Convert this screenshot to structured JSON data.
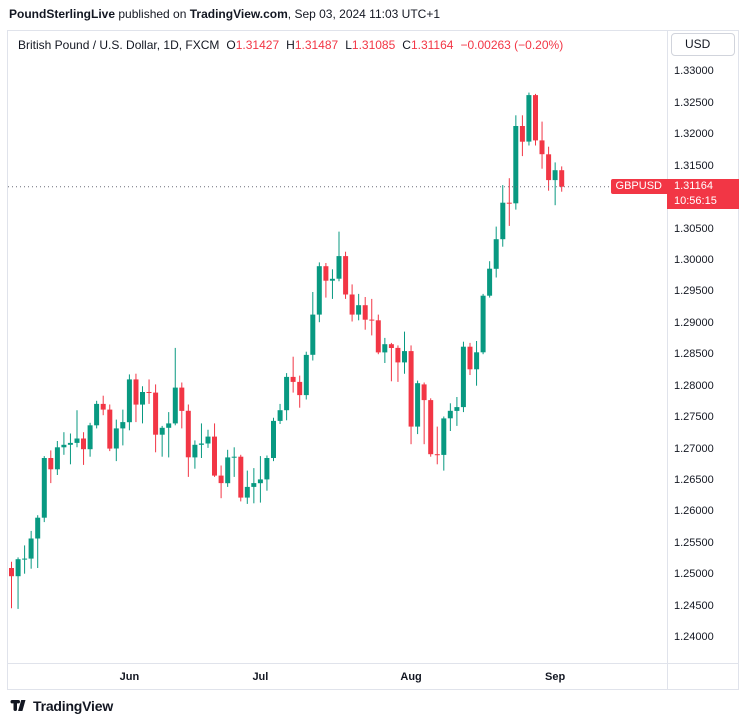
{
  "attribution": {
    "parts": [
      {
        "text": "PoundSterlingLive",
        "bold": true
      },
      {
        "text": " published on ",
        "bold": false
      },
      {
        "text": "TradingView.com",
        "bold": true
      },
      {
        "text": ", Sep 03, 2024 11:03 UTC+1",
        "bold": false
      }
    ]
  },
  "legend": {
    "symbol_title": "British Pound / U.S. Dollar, 1D, FXCM",
    "ohlc": {
      "o_label": "O",
      "o": "1.31427",
      "h_label": "H",
      "h": "1.31487",
      "l_label": "L",
      "l": "1.31085",
      "c_label": "C",
      "c": "1.31164",
      "change": "−0.00263 (−0.20%)"
    }
  },
  "price_axis": {
    "currency_button": "USD",
    "labels": [
      "1.33000",
      "1.32500",
      "1.32000",
      "1.31500",
      "1.31000",
      "1.30500",
      "1.30000",
      "1.29500",
      "1.29000",
      "1.28500",
      "1.28000",
      "1.27500",
      "1.27000",
      "1.26500",
      "1.26000",
      "1.25500",
      "1.25000",
      "1.24500",
      "1.24000"
    ],
    "price_tag": {
      "symbol": "GBPUSD",
      "price": "1.31164",
      "countdown": "10:56:15"
    }
  },
  "time_axis": {
    "labels": [
      {
        "text": "Jun",
        "candle_index": 18
      },
      {
        "text": "Jul",
        "candle_index": 38
      },
      {
        "text": "Aug",
        "candle_index": 61
      },
      {
        "text": "Sep",
        "candle_index": 83
      }
    ]
  },
  "footer": {
    "brand": "TradingView"
  },
  "colors": {
    "up": "#089981",
    "down": "#F23645",
    "price_line": "#6a6d78",
    "tag_bg": "#F23645",
    "text": "#131722",
    "border": "#e0e3eb"
  },
  "chart_data": {
    "type": "candlestick",
    "title": "British Pound / U.S. Dollar, 1D, FXCM",
    "symbol": "GBPUSD",
    "interval": "1D",
    "exchange": "FXCM",
    "last": {
      "open": 1.31427,
      "high": 1.31487,
      "low": 1.31085,
      "close": 1.31164,
      "change": -0.00263,
      "change_pct": -0.2
    },
    "ylim": [
      1.2359,
      1.3364
    ],
    "price_line": 1.31164,
    "x_axis": [
      "Jun",
      "Jul",
      "Aug",
      "Sep"
    ],
    "legend_position": "top-left",
    "grid": false,
    "candles": [
      [
        "2024-05-08",
        1.251,
        1.252,
        1.2446,
        1.2497
      ],
      [
        "2024-05-09",
        1.2497,
        1.2527,
        1.2445,
        1.2524
      ],
      [
        "2024-05-10",
        1.2524,
        1.2546,
        1.2501,
        1.2525
      ],
      [
        "2024-05-13",
        1.2525,
        1.2569,
        1.2509,
        1.2557
      ],
      [
        "2024-05-14",
        1.2557,
        1.2594,
        1.251,
        1.259
      ],
      [
        "2024-05-15",
        1.259,
        1.2688,
        1.2583,
        1.2685
      ],
      [
        "2024-05-16",
        1.2685,
        1.2697,
        1.2645,
        1.2667
      ],
      [
        "2024-05-17",
        1.2667,
        1.2712,
        1.2658,
        1.2702
      ],
      [
        "2024-05-20",
        1.2702,
        1.2726,
        1.269,
        1.2706
      ],
      [
        "2024-05-21",
        1.2706,
        1.2724,
        1.2675,
        1.2709
      ],
      [
        "2024-05-22",
        1.2709,
        1.2761,
        1.2702,
        1.2716
      ],
      [
        "2024-05-23",
        1.2716,
        1.2726,
        1.2674,
        1.2699
      ],
      [
        "2024-05-24",
        1.2699,
        1.2741,
        1.2687,
        1.2737
      ],
      [
        "2024-05-27",
        1.2737,
        1.2776,
        1.2732,
        1.2771
      ],
      [
        "2024-05-28",
        1.2771,
        1.2784,
        1.2753,
        1.2762
      ],
      [
        "2024-05-29",
        1.2762,
        1.277,
        1.2696,
        1.27
      ],
      [
        "2024-05-30",
        1.27,
        1.2746,
        1.268,
        1.2732
      ],
      [
        "2024-05-31",
        1.2732,
        1.2762,
        1.2705,
        1.2742
      ],
      [
        "2024-06-03",
        1.2742,
        1.2818,
        1.2729,
        1.281
      ],
      [
        "2024-06-04",
        1.281,
        1.2819,
        1.2742,
        1.277
      ],
      [
        "2024-06-05",
        1.277,
        1.2799,
        1.274,
        1.279
      ],
      [
        "2024-06-06",
        1.279,
        1.281,
        1.2771,
        1.2789
      ],
      [
        "2024-06-07",
        1.2789,
        1.2802,
        1.2694,
        1.2722
      ],
      [
        "2024-06-10",
        1.2722,
        1.2736,
        1.2687,
        1.2733
      ],
      [
        "2024-06-11",
        1.2733,
        1.2758,
        1.2686,
        1.274
      ],
      [
        "2024-06-12",
        1.274,
        1.286,
        1.2737,
        1.2797
      ],
      [
        "2024-06-13",
        1.2797,
        1.2805,
        1.2732,
        1.276
      ],
      [
        "2024-06-14",
        1.276,
        1.277,
        1.2655,
        1.2686
      ],
      [
        "2024-06-17",
        1.2686,
        1.2713,
        1.2668,
        1.2706
      ],
      [
        "2024-06-18",
        1.2706,
        1.274,
        1.2685,
        1.2708
      ],
      [
        "2024-06-19",
        1.2708,
        1.273,
        1.2701,
        1.2719
      ],
      [
        "2024-06-20",
        1.2719,
        1.274,
        1.2655,
        1.2657
      ],
      [
        "2024-06-21",
        1.2657,
        1.2673,
        1.2621,
        1.2645
      ],
      [
        "2024-06-24",
        1.2645,
        1.2698,
        1.2639,
        1.2686
      ],
      [
        "2024-06-25",
        1.2686,
        1.2702,
        1.2655,
        1.2687
      ],
      [
        "2024-06-26",
        1.2687,
        1.269,
        1.2616,
        1.2622
      ],
      [
        "2024-06-27",
        1.2622,
        1.2665,
        1.2612,
        1.2639
      ],
      [
        "2024-06-28",
        1.2639,
        1.2669,
        1.2613,
        1.2645
      ],
      [
        "2024-07-01",
        1.2645,
        1.2688,
        1.2614,
        1.2651
      ],
      [
        "2024-07-02",
        1.2651,
        1.2689,
        1.2633,
        1.2685
      ],
      [
        "2024-07-03",
        1.2685,
        1.2749,
        1.268,
        1.2744
      ],
      [
        "2024-07-04",
        1.2744,
        1.2771,
        1.2739,
        1.2761
      ],
      [
        "2024-07-05",
        1.2761,
        1.282,
        1.2745,
        1.2814
      ],
      [
        "2024-07-08",
        1.2814,
        1.2846,
        1.2789,
        1.2806
      ],
      [
        "2024-07-09",
        1.2806,
        1.2816,
        1.2765,
        1.2785
      ],
      [
        "2024-07-10",
        1.2785,
        1.2854,
        1.2778,
        1.2849
      ],
      [
        "2024-07-11",
        1.2849,
        1.2949,
        1.284,
        1.2913
      ],
      [
        "2024-07-12",
        1.2913,
        1.2996,
        1.2901,
        1.299
      ],
      [
        "2024-07-15",
        1.299,
        1.2995,
        1.294,
        1.2967
      ],
      [
        "2024-07-16",
        1.2967,
        1.2985,
        1.2938,
        1.297
      ],
      [
        "2024-07-17",
        1.297,
        1.3045,
        1.2966,
        1.3006
      ],
      [
        "2024-07-18",
        1.3006,
        1.3013,
        1.2938,
        1.2945
      ],
      [
        "2024-07-19",
        1.2945,
        1.2961,
        1.2902,
        1.2913
      ],
      [
        "2024-07-22",
        1.2913,
        1.2946,
        1.2904,
        1.2928
      ],
      [
        "2024-07-23",
        1.2928,
        1.2941,
        1.2889,
        1.2905
      ],
      [
        "2024-07-24",
        1.2905,
        1.2938,
        1.288,
        1.2904
      ],
      [
        "2024-07-25",
        1.2904,
        1.2913,
        1.285,
        1.2853
      ],
      [
        "2024-07-26",
        1.2853,
        1.2876,
        1.2836,
        1.2866
      ],
      [
        "2024-07-29",
        1.2866,
        1.2868,
        1.2807,
        1.286
      ],
      [
        "2024-07-30",
        1.286,
        1.2864,
        1.2806,
        1.2837
      ],
      [
        "2024-07-31",
        1.2837,
        1.2886,
        1.2819,
        1.2855
      ],
      [
        "2024-08-01",
        1.2855,
        1.2864,
        1.2707,
        1.2735
      ],
      [
        "2024-08-02",
        1.2735,
        1.2808,
        1.2723,
        1.2804
      ],
      [
        "2024-08-05",
        1.2802,
        1.2805,
        1.2707,
        1.2777
      ],
      [
        "2024-08-06",
        1.2777,
        1.278,
        1.2687,
        1.2691
      ],
      [
        "2024-08-07",
        1.2691,
        1.2735,
        1.2675,
        1.269
      ],
      [
        "2024-08-08",
        1.269,
        1.2751,
        1.2665,
        1.2748
      ],
      [
        "2024-08-09",
        1.2748,
        1.2772,
        1.2728,
        1.276
      ],
      [
        "2024-08-12",
        1.276,
        1.2782,
        1.2736,
        1.2766
      ],
      [
        "2024-08-13",
        1.2766,
        1.287,
        1.2758,
        1.2862
      ],
      [
        "2024-08-14",
        1.2862,
        1.2868,
        1.2817,
        1.2826
      ],
      [
        "2024-08-15",
        1.2826,
        1.2871,
        1.28,
        1.2853
      ],
      [
        "2024-08-16",
        1.2853,
        1.2946,
        1.285,
        1.2943
      ],
      [
        "2024-08-19",
        1.2943,
        1.2998,
        1.294,
        1.2986
      ],
      [
        "2024-08-20",
        1.2986,
        1.3053,
        1.2972,
        1.3033
      ],
      [
        "2024-08-21",
        1.3033,
        1.3119,
        1.3021,
        1.3091
      ],
      [
        "2024-08-22",
        1.3091,
        1.313,
        1.3054,
        1.309
      ],
      [
        "2024-08-23",
        1.309,
        1.323,
        1.308,
        1.3213
      ],
      [
        "2024-08-26",
        1.3213,
        1.323,
        1.3165,
        1.3188
      ],
      [
        "2024-08-27",
        1.3188,
        1.3266,
        1.3182,
        1.3262
      ],
      [
        "2024-08-28",
        1.3262,
        1.3264,
        1.3182,
        1.319
      ],
      [
        "2024-08-29",
        1.319,
        1.322,
        1.3145,
        1.3168
      ],
      [
        "2024-08-30",
        1.3168,
        1.318,
        1.311,
        1.3127
      ],
      [
        "2024-09-02",
        1.3127,
        1.3155,
        1.3087,
        1.31427
      ],
      [
        "2024-09-03",
        1.31427,
        1.31487,
        1.31085,
        1.31164
      ]
    ]
  }
}
